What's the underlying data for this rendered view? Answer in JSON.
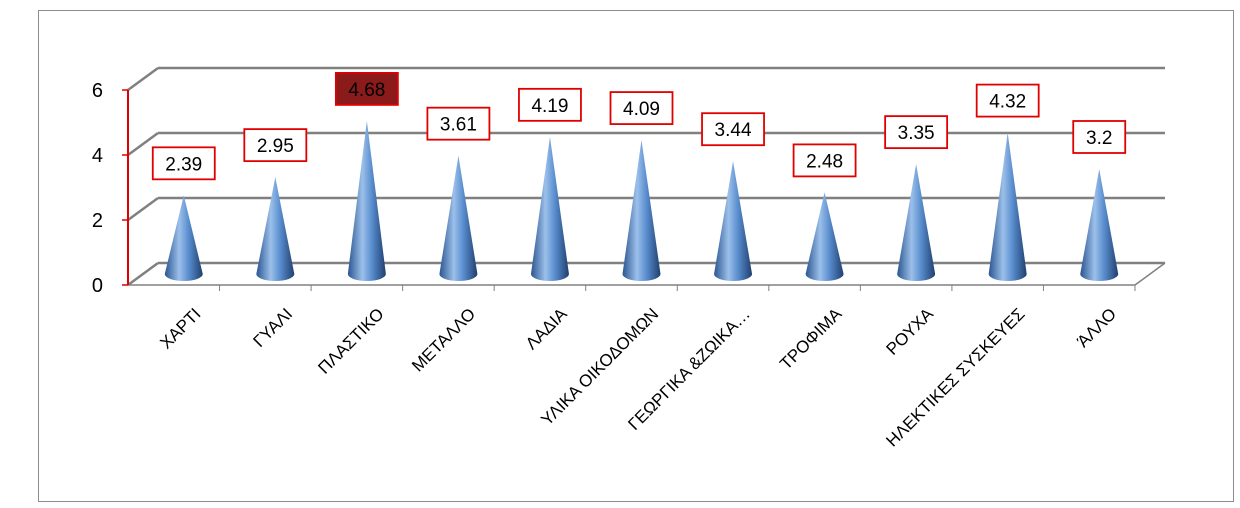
{
  "chart_data": {
    "type": "bar",
    "shape": "cone-3d",
    "categories": [
      "ΧΑΡΤΙ",
      "ΓΥΑΛΙ",
      "ΠΛΑΣΤΙΚΟ",
      "ΜΕΤΑΛΛΟ",
      "ΛΑΔΙΑ",
      "ΥΛΙΚΑ ΟΙΚΟΔΟΜΩΝ",
      "ΓΕΩΡΓΙΚΑ &ΖΩΙΚΑ…",
      "ΤΡΟΦΙΜΑ",
      "ΡΟΥΧΑ",
      "ΗΛΕΚΤΙΚΕΣ ΣΥΣΚΕΥΕΣ",
      "ΆΛΛΟ"
    ],
    "values": [
      2.39,
      2.95,
      4.68,
      3.61,
      4.19,
      4.09,
      3.44,
      2.48,
      3.35,
      4.32,
      3.2
    ],
    "data_labels": [
      "2.39",
      "2.95",
      "4.68",
      "3.61",
      "4.19",
      "4.09",
      "3.44",
      "2.48",
      "3.35",
      "4.32",
      "3.2"
    ],
    "highlighted_index": 2,
    "y_ticks": [
      "0",
      "2",
      "4",
      "6"
    ],
    "ylim": [
      0,
      6
    ],
    "grid": true,
    "legend": "none",
    "title": "",
    "xlabel": "",
    "ylabel": "",
    "colors": {
      "cone": "#4f81bd",
      "cone_dark": "#1f3f6e",
      "cone_light": "#9cc0ea",
      "label_border": "#e00000",
      "highlight_fill": "#8b1a1a",
      "gridline": "#808080",
      "axis": "#e00000"
    }
  }
}
